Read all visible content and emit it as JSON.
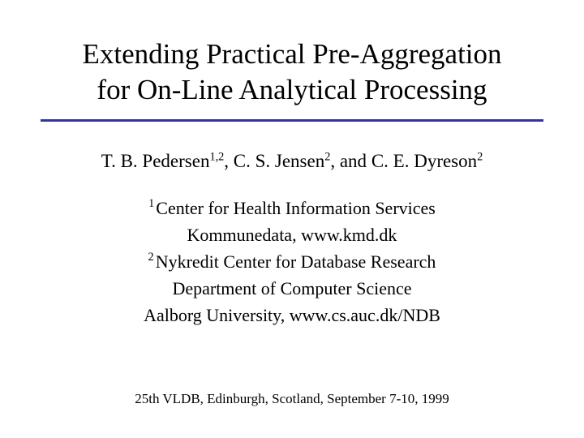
{
  "title_line1": "Extending Practical Pre-Aggregation",
  "title_line2": "for On-Line Analytical Processing",
  "authors": {
    "a1_name": "T. B. Pedersen",
    "a1_sup": "1,2",
    "sep1": ", ",
    "a2_name": "C. S. Jensen",
    "a2_sup": "2",
    "sep2": ", and ",
    "a3_name": "C. E. Dyreson",
    "a3_sup": "2"
  },
  "affiliations": {
    "l1_sup": "1",
    "l1_text": "Center for Health Information Services",
    "l2_text": "Kommunedata, www.kmd.dk",
    "l3_sup": "2",
    "l3_text": "Nykredit Center for Database Research",
    "l4_text": "Department of Computer Science",
    "l5_text": "Aalborg University, www.cs.auc.dk/NDB"
  },
  "footer": "25th VLDB, Edinburgh, Scotland, September 7-10, 1999",
  "colors": {
    "rule": "#333399",
    "background": "#ffffff",
    "text": "#000000"
  }
}
